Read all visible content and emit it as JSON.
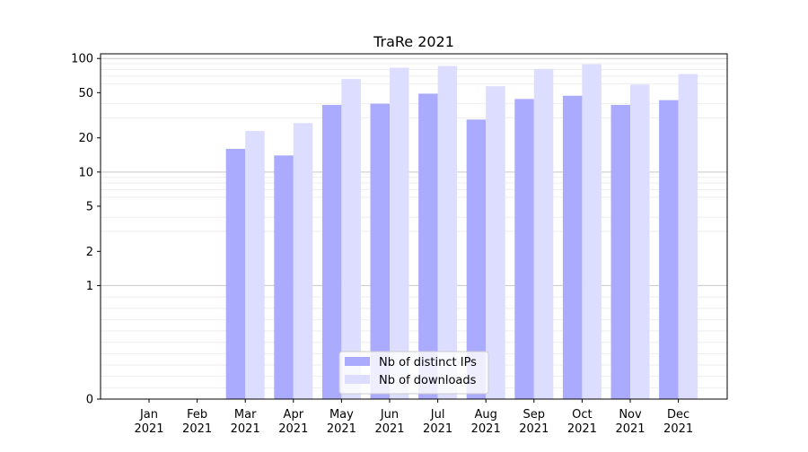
{
  "chart_data": {
    "type": "bar",
    "title": "TraRe 2021",
    "xlabel": "",
    "ylabel": "",
    "categories": [
      {
        "month": "Jan",
        "year": "2021"
      },
      {
        "month": "Feb",
        "year": "2021"
      },
      {
        "month": "Mar",
        "year": "2021"
      },
      {
        "month": "Apr",
        "year": "2021"
      },
      {
        "month": "May",
        "year": "2021"
      },
      {
        "month": "Jun",
        "year": "2021"
      },
      {
        "month": "Jul",
        "year": "2021"
      },
      {
        "month": "Aug",
        "year": "2021"
      },
      {
        "month": "Sep",
        "year": "2021"
      },
      {
        "month": "Oct",
        "year": "2021"
      },
      {
        "month": "Nov",
        "year": "2021"
      },
      {
        "month": "Dec",
        "year": "2021"
      }
    ],
    "series": [
      {
        "name": "Nb of distinct IPs",
        "color": "#aaaaff",
        "values": [
          0,
          0,
          16,
          14,
          39,
          40,
          49,
          29,
          44,
          47,
          39,
          43
        ]
      },
      {
        "name": "Nb of downloads",
        "color": "#ddddff",
        "values": [
          0,
          0,
          23,
          27,
          66,
          83,
          86,
          57,
          81,
          89,
          59,
          73
        ]
      }
    ],
    "y_scale": "symlog",
    "ylim": [
      0,
      110
    ],
    "yticks": [
      0,
      1,
      2,
      5,
      10,
      20,
      50,
      100
    ],
    "grid": "horizontal",
    "legend_position": "lower-center"
  }
}
